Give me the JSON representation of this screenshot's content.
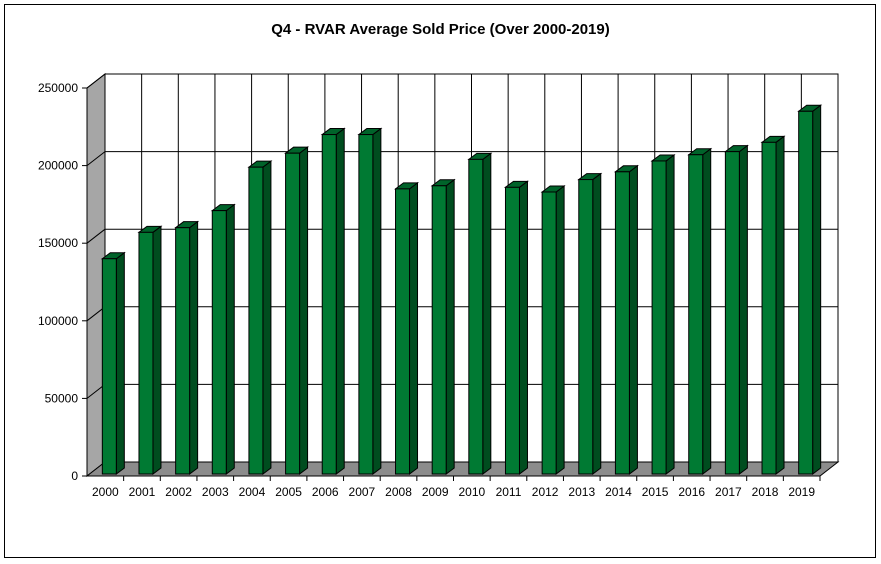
{
  "chart_data": {
    "type": "bar",
    "title": "Q4 - RVAR Average Sold Price (Over 2000-2019)",
    "xlabel": "",
    "ylabel": "",
    "categories": [
      "2000",
      "2001",
      "2002",
      "2003",
      "2004",
      "2005",
      "2006",
      "2007",
      "2008",
      "2009",
      "2010",
      "2011",
      "2012",
      "2013",
      "2014",
      "2015",
      "2016",
      "2017",
      "2018",
      "2019"
    ],
    "values": [
      140000,
      157000,
      160000,
      171000,
      199000,
      208000,
      220000,
      220000,
      185000,
      187000,
      204000,
      186000,
      183000,
      191000,
      196000,
      203000,
      207000,
      209000,
      215000,
      235000
    ],
    "ylim": [
      0,
      250000
    ],
    "yticks": [
      "0",
      "50000",
      "100000",
      "150000",
      "200000",
      "250000"
    ],
    "grid": true,
    "style": "3d",
    "colors": {
      "bar_front": "#007A33",
      "bar_side": "#004D1F",
      "bar_top": "#00632A",
      "back_wall": "#FFFFFF",
      "side_wall": "#A6A6A6",
      "floor": "#8C8C8C"
    }
  }
}
